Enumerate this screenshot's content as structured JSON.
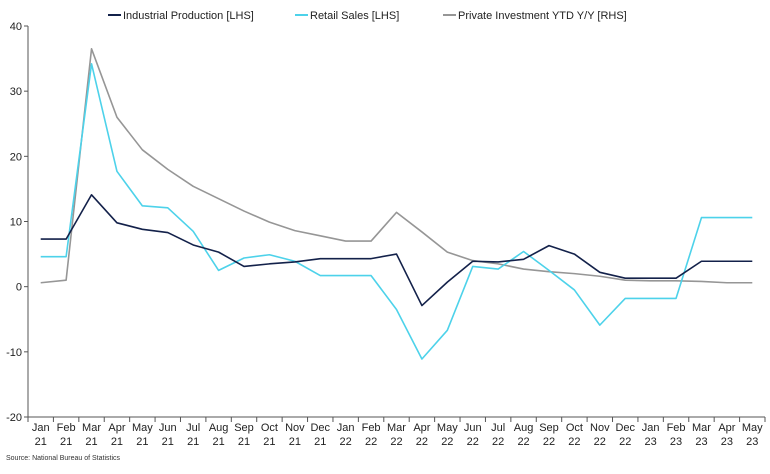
{
  "chart_data": {
    "type": "line",
    "title": "",
    "xlabel": "",
    "ylabel": "",
    "ylim": [
      -20,
      40
    ],
    "yticks": [
      "40",
      "30",
      "20",
      "10",
      "0",
      "-10",
      "-20"
    ],
    "categories": [
      [
        "Jan",
        "21"
      ],
      [
        "Feb",
        "21"
      ],
      [
        "Mar",
        "21"
      ],
      [
        "Apr",
        "21"
      ],
      [
        "May",
        "21"
      ],
      [
        "Jun",
        "21"
      ],
      [
        "Jul",
        "21"
      ],
      [
        "Aug",
        "21"
      ],
      [
        "Sep",
        "21"
      ],
      [
        "Oct",
        "21"
      ],
      [
        "Nov",
        "21"
      ],
      [
        "Dec",
        "21"
      ],
      [
        "Jan",
        "22"
      ],
      [
        "Feb",
        "22"
      ],
      [
        "Mar",
        "22"
      ],
      [
        "Apr",
        "22"
      ],
      [
        "May",
        "22"
      ],
      [
        "Jun",
        "22"
      ],
      [
        "Jul",
        "22"
      ],
      [
        "Aug",
        "22"
      ],
      [
        "Sep",
        "22"
      ],
      [
        "Oct",
        "22"
      ],
      [
        "Nov",
        "22"
      ],
      [
        "Dec",
        "22"
      ],
      [
        "Jan",
        "23"
      ],
      [
        "Feb",
        "23"
      ],
      [
        "Mar",
        "23"
      ],
      [
        "Apr",
        "23"
      ],
      [
        "May",
        "23"
      ]
    ],
    "series": [
      {
        "name": "Industrial Production [LHS]",
        "color": "#13214a",
        "values": [
          7.3,
          7.3,
          14.1,
          9.8,
          8.8,
          8.3,
          6.4,
          5.3,
          3.1,
          3.5,
          3.8,
          4.3,
          4.3,
          4.3,
          5.0,
          -2.9,
          0.7,
          3.9,
          3.8,
          4.2,
          6.3,
          5.0,
          2.2,
          1.3,
          1.3,
          1.3,
          3.9,
          3.9,
          3.9
        ]
      },
      {
        "name": "Retail Sales [LHS]",
        "color": "#4dd2ea",
        "values": [
          4.6,
          4.6,
          34.2,
          17.7,
          12.4,
          12.1,
          8.5,
          2.5,
          4.4,
          4.9,
          3.9,
          1.7,
          1.7,
          1.7,
          -3.5,
          -11.1,
          -6.7,
          3.1,
          2.7,
          5.4,
          2.5,
          -0.5,
          -5.9,
          -1.8,
          -1.8,
          -1.8,
          10.6,
          10.6,
          10.6
        ]
      },
      {
        "name": "Private Investment YTD Y/Y [RHS]",
        "color": "#969696",
        "values": [
          0.6,
          1.0,
          36.5,
          26.0,
          21.0,
          18.0,
          15.4,
          13.5,
          11.6,
          9.9,
          8.6,
          7.8,
          7.0,
          7.0,
          11.4,
          8.4,
          5.3,
          4.0,
          3.5,
          2.7,
          2.3,
          2.0,
          1.6,
          1.0,
          0.9,
          0.9,
          0.8,
          0.6,
          0.6
        ]
      }
    ],
    "legend_position": "top",
    "grid": false
  },
  "source": "Source: National Bureau of Statistics"
}
